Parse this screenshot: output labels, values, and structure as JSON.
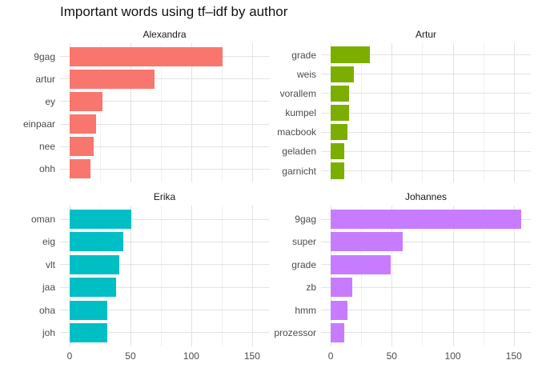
{
  "title": "Important words using tf–idf by author",
  "chart_data": {
    "type": "bar",
    "orientation": "horizontal",
    "facet_by": "author",
    "xlabel": "",
    "ylabel": "",
    "legend": "none",
    "grid": {
      "major_color": "#E3E3E3",
      "minor_color": "#F1F1F1",
      "background": "#FFFFFF"
    },
    "text_colors": {
      "title": "#111111",
      "strip": "#1A1A1A",
      "axis": "#4D4D4D"
    },
    "x_axis": {
      "ticks": [
        0,
        50,
        100,
        150
      ],
      "minor_ticks": [
        25,
        75,
        125
      ],
      "range": [
        -7.9,
        163.9
      ]
    },
    "facets": [
      {
        "name": "Alexandra",
        "color": "#F8766D",
        "words": [
          "9gag",
          "artur",
          "ey",
          "einpaar",
          "nee",
          "ohh"
        ],
        "values": [
          126,
          70,
          27,
          22,
          20,
          17
        ]
      },
      {
        "name": "Artur",
        "color": "#7CAE00",
        "words": [
          "grade",
          "weis",
          "vorallem",
          "kumpel",
          "macbook",
          "geladen",
          "garnicht"
        ],
        "values": [
          32,
          19,
          15,
          15,
          14,
          11,
          11
        ]
      },
      {
        "name": "Erika",
        "color": "#00BFC4",
        "words": [
          "oman",
          "eig",
          "vlt",
          "jaa",
          "oha",
          "joh"
        ],
        "values": [
          51,
          44,
          41,
          38,
          31,
          31
        ]
      },
      {
        "name": "Johannes",
        "color": "#C77CFF",
        "words": [
          "9gag",
          "super",
          "grade",
          "zb",
          "hmm",
          "prozessor"
        ],
        "values": [
          156,
          59,
          49,
          18,
          14,
          11
        ]
      }
    ]
  }
}
